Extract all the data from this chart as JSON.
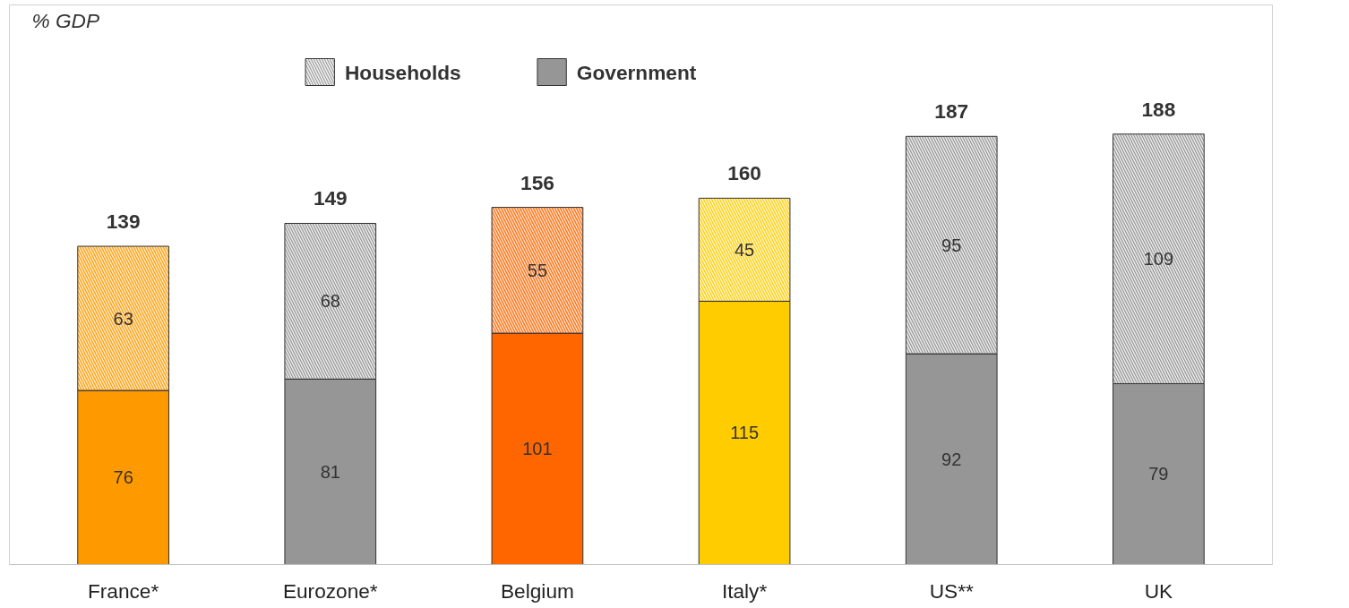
{
  "chart_data": {
    "type": "bar",
    "stacked": true,
    "annotations": [
      "% GDP"
    ],
    "categories": [
      "France*",
      "Eurozone*",
      "Belgium",
      "Italy*",
      "US**",
      "UK"
    ],
    "series": [
      {
        "name": "Government",
        "color": "#969696",
        "colors": [
          "#ff9900",
          "#969696",
          "#ff6600",
          "#ffcc00",
          "#969696",
          "#969696"
        ],
        "values": [
          76,
          81,
          101,
          115,
          92,
          79
        ]
      },
      {
        "name": "Households",
        "color": "#969696",
        "colors": [
          "#ff9900",
          "#969696",
          "#ff6600",
          "#ffcc00",
          "#969696",
          "#969696"
        ],
        "values": [
          63,
          68,
          55,
          45,
          95,
          109
        ]
      }
    ],
    "totals": [
      "139",
      "149",
      "156",
      "160",
      "187",
      "188"
    ],
    "data_labels": true,
    "legend": "top",
    "grid": false
  }
}
